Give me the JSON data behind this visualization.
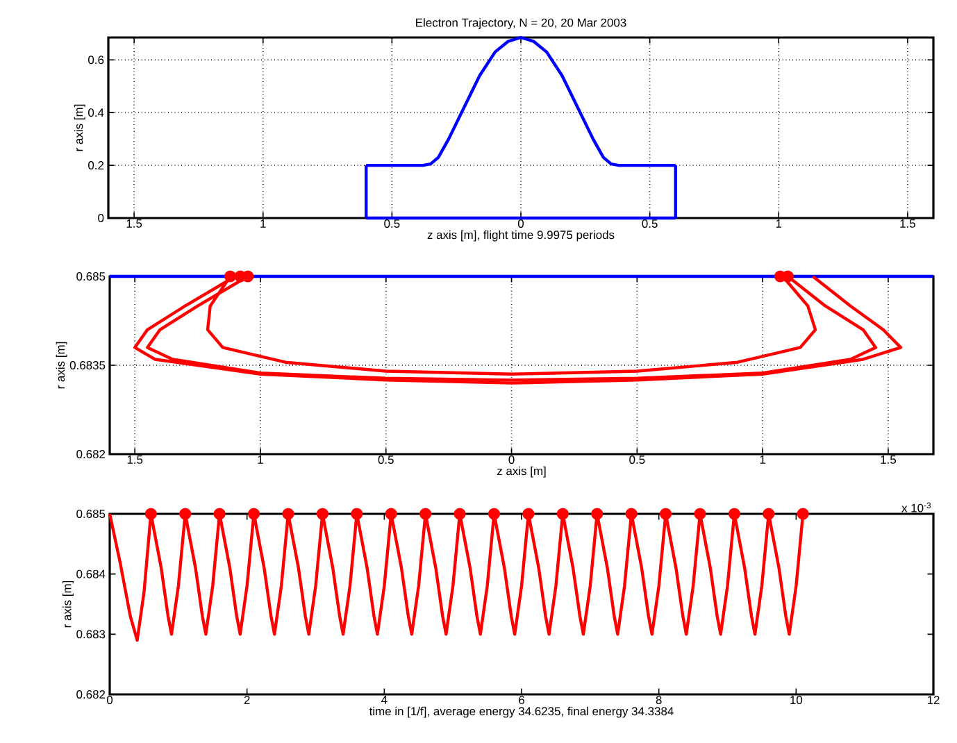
{
  "chart_data": [
    {
      "type": "line",
      "title": "Electron Trajectory,   N = 20,    20 Mar 2003",
      "xlabel": "z axis [m],  flight time 9.9975 periods",
      "ylabel": "r axis [m]",
      "xlim": [
        -1.6,
        1.6
      ],
      "ylim": [
        0,
        0.685
      ],
      "xticks": [
        {
          "value": -1.5,
          "label": "1.5"
        },
        {
          "value": -1,
          "label": "1"
        },
        {
          "value": -0.5,
          "label": "0.5"
        },
        0,
        0.5,
        1,
        1.5
      ],
      "yticks": [
        0,
        0.2,
        0.4,
        0.6
      ],
      "grid": true,
      "series": [
        {
          "color": "#0000ff",
          "marker": "none",
          "x": [
            -0.6,
            -0.38,
            -0.35,
            -0.32,
            -0.28,
            -0.22,
            -0.16,
            -0.1,
            -0.05,
            0,
            0.05,
            0.1,
            0.16,
            0.22,
            0.28,
            0.32,
            0.35,
            0.38,
            0.6
          ],
          "values": [
            0.2,
            0.2,
            0.205,
            0.23,
            0.3,
            0.42,
            0.54,
            0.63,
            0.67,
            0.685,
            0.67,
            0.63,
            0.54,
            0.42,
            0.3,
            0.23,
            0.205,
            0.2,
            0.2
          ]
        },
        {
          "color": "#0000ff",
          "marker": "none",
          "x": [
            -0.6,
            -0.6
          ],
          "values": [
            0,
            0.2
          ]
        },
        {
          "color": "#0000ff",
          "marker": "none",
          "x": [
            0.6,
            0.6
          ],
          "values": [
            0,
            0.2
          ]
        },
        {
          "color": "#0000ff",
          "marker": "none",
          "x": [
            -0.6,
            0.6
          ],
          "values": [
            0,
            0
          ]
        }
      ]
    },
    {
      "type": "line",
      "xlabel": "z axis [m]",
      "ylabel": "r axis [m]",
      "xlim": [
        -1.6,
        1.68
      ],
      "ylim": [
        0.682,
        0.685
      ],
      "xticks": [
        {
          "value": -1.5,
          "label": "1.5"
        },
        {
          "value": -1,
          "label": "1"
        },
        {
          "value": -0.5,
          "label": "0.5"
        },
        0,
        0.5,
        1,
        1.5
      ],
      "yticks": [
        0.682,
        0.6835,
        0.685
      ],
      "grid": true,
      "series": [
        {
          "color": "#0000ff",
          "marker": "none",
          "x": [
            -1.6,
            1.68
          ],
          "values": [
            0.685,
            0.685
          ]
        },
        {
          "color": "#ff0000",
          "marker": "none",
          "x": [
            -1.1,
            -1.3,
            -1.45,
            -1.5,
            -1.42,
            -1.0,
            -0.5,
            0,
            0.5,
            1.0,
            1.4,
            1.55,
            1.48,
            1.35,
            1.2
          ],
          "values": [
            0.685,
            0.6845,
            0.6841,
            0.6838,
            0.6836,
            0.68335,
            0.68325,
            0.6832,
            0.68325,
            0.68335,
            0.6836,
            0.6838,
            0.6841,
            0.6845,
            0.685
          ]
        },
        {
          "color": "#ff0000",
          "marker": "none",
          "x": [
            -1.05,
            -1.25,
            -1.4,
            -1.45,
            -1.35,
            -1.0,
            -0.5,
            0,
            0.5,
            1.0,
            1.35,
            1.45,
            1.4,
            1.25,
            1.1
          ],
          "values": [
            0.685,
            0.6845,
            0.6841,
            0.6838,
            0.6836,
            0.68337,
            0.68328,
            0.68325,
            0.68328,
            0.68337,
            0.6836,
            0.6838,
            0.6841,
            0.6845,
            0.685
          ]
        },
        {
          "color": "#ff0000",
          "marker": "none",
          "x": [
            -1.12,
            -1.2,
            -1.21,
            -1.15,
            -0.9,
            -0.5,
            0,
            0.5,
            0.9,
            1.15,
            1.21,
            1.18,
            1.08
          ],
          "values": [
            0.685,
            0.6845,
            0.6841,
            0.6838,
            0.68355,
            0.6834,
            0.68335,
            0.6834,
            0.68355,
            0.6838,
            0.6841,
            0.6845,
            0.685
          ]
        },
        {
          "type": "scatter",
          "color": "#ff0000",
          "marker": "circle",
          "x": [
            -1.12,
            -1.08,
            -1.05,
            1.07,
            1.1
          ],
          "values": [
            0.685,
            0.685,
            0.685,
            0.685,
            0.685
          ]
        }
      ]
    },
    {
      "type": "line",
      "xlabel": "time in [1/f], average energy 34.6235, final energy 34.3384",
      "ylabel": "r axis [m]",
      "annotations": [
        "x 10$^{-3}$"
      ],
      "xlim": [
        0,
        12
      ],
      "ylim": [
        0.682,
        0.685
      ],
      "xticks": [
        0,
        2,
        4,
        6,
        8,
        10,
        12
      ],
      "yticks": [
        0.682,
        0.683,
        0.684,
        0.685
      ],
      "series": [
        {
          "color": "#ff0000",
          "marker": "none",
          "x": [
            0,
            0.15,
            0.3,
            0.4,
            0.5,
            0.6,
            0.75,
            0.85,
            0.9,
            1.0,
            1.1,
            1.25,
            1.35,
            1.4,
            1.5,
            1.6,
            1.75,
            1.85,
            1.9,
            2.0,
            2.1,
            2.25,
            2.35,
            2.4,
            2.5,
            2.6,
            2.75,
            2.85,
            2.9,
            3.0,
            3.1,
            3.25,
            3.35,
            3.4,
            3.5,
            3.6,
            3.75,
            3.85,
            3.9,
            4.0,
            4.1,
            4.25,
            4.35,
            4.4,
            4.5,
            4.6,
            4.75,
            4.85,
            4.9,
            5.0,
            5.1,
            5.25,
            5.35,
            5.4,
            5.5,
            5.6,
            5.75,
            5.85,
            5.9,
            6.0,
            6.1,
            6.25,
            6.35,
            6.4,
            6.5,
            6.6,
            6.75,
            6.85,
            6.9,
            7.0,
            7.1,
            7.25,
            7.35,
            7.4,
            7.5,
            7.6,
            7.75,
            7.85,
            7.9,
            8.0,
            8.1,
            8.25,
            8.35,
            8.4,
            8.5,
            8.6,
            8.75,
            8.85,
            8.9,
            9.0,
            9.1,
            9.25,
            9.35,
            9.4,
            9.5,
            9.6,
            9.75,
            9.85,
            9.9,
            10.0,
            10.1
          ],
          "values": [
            0.685,
            0.6842,
            0.6833,
            0.6829,
            0.6837,
            0.685,
            0.6841,
            0.6833,
            0.683,
            0.6838,
            0.685,
            0.6841,
            0.6833,
            0.683,
            0.6838,
            0.685,
            0.6841,
            0.6833,
            0.683,
            0.6838,
            0.685,
            0.6841,
            0.6833,
            0.683,
            0.6838,
            0.685,
            0.6841,
            0.6833,
            0.683,
            0.6838,
            0.685,
            0.6841,
            0.6833,
            0.683,
            0.6838,
            0.685,
            0.6841,
            0.6833,
            0.683,
            0.6838,
            0.685,
            0.6841,
            0.6833,
            0.683,
            0.6838,
            0.685,
            0.6841,
            0.6833,
            0.683,
            0.6838,
            0.685,
            0.6841,
            0.6833,
            0.683,
            0.6838,
            0.685,
            0.6841,
            0.6833,
            0.683,
            0.6838,
            0.685,
            0.6841,
            0.6833,
            0.683,
            0.6838,
            0.685,
            0.6841,
            0.6833,
            0.683,
            0.6838,
            0.685,
            0.6841,
            0.6833,
            0.683,
            0.6838,
            0.685,
            0.6841,
            0.6833,
            0.683,
            0.6838,
            0.685,
            0.6841,
            0.6833,
            0.683,
            0.6838,
            0.685,
            0.6841,
            0.6833,
            0.683,
            0.6838,
            0.685,
            0.6841,
            0.6833,
            0.683,
            0.6838,
            0.685,
            0.6841,
            0.6833,
            0.683,
            0.6838,
            0.685
          ]
        },
        {
          "type": "scatter",
          "color": "#ff0000",
          "marker": "circle",
          "x": [
            0.6,
            1.1,
            1.6,
            2.1,
            2.6,
            3.1,
            3.6,
            4.1,
            4.6,
            5.1,
            5.6,
            6.1,
            6.6,
            7.1,
            7.6,
            8.1,
            8.6,
            9.1,
            9.6,
            10.1
          ],
          "values": [
            0.685,
            0.685,
            0.685,
            0.685,
            0.685,
            0.685,
            0.685,
            0.685,
            0.685,
            0.685,
            0.685,
            0.685,
            0.685,
            0.685,
            0.685,
            0.685,
            0.685,
            0.685,
            0.685,
            0.685
          ]
        }
      ]
    }
  ]
}
